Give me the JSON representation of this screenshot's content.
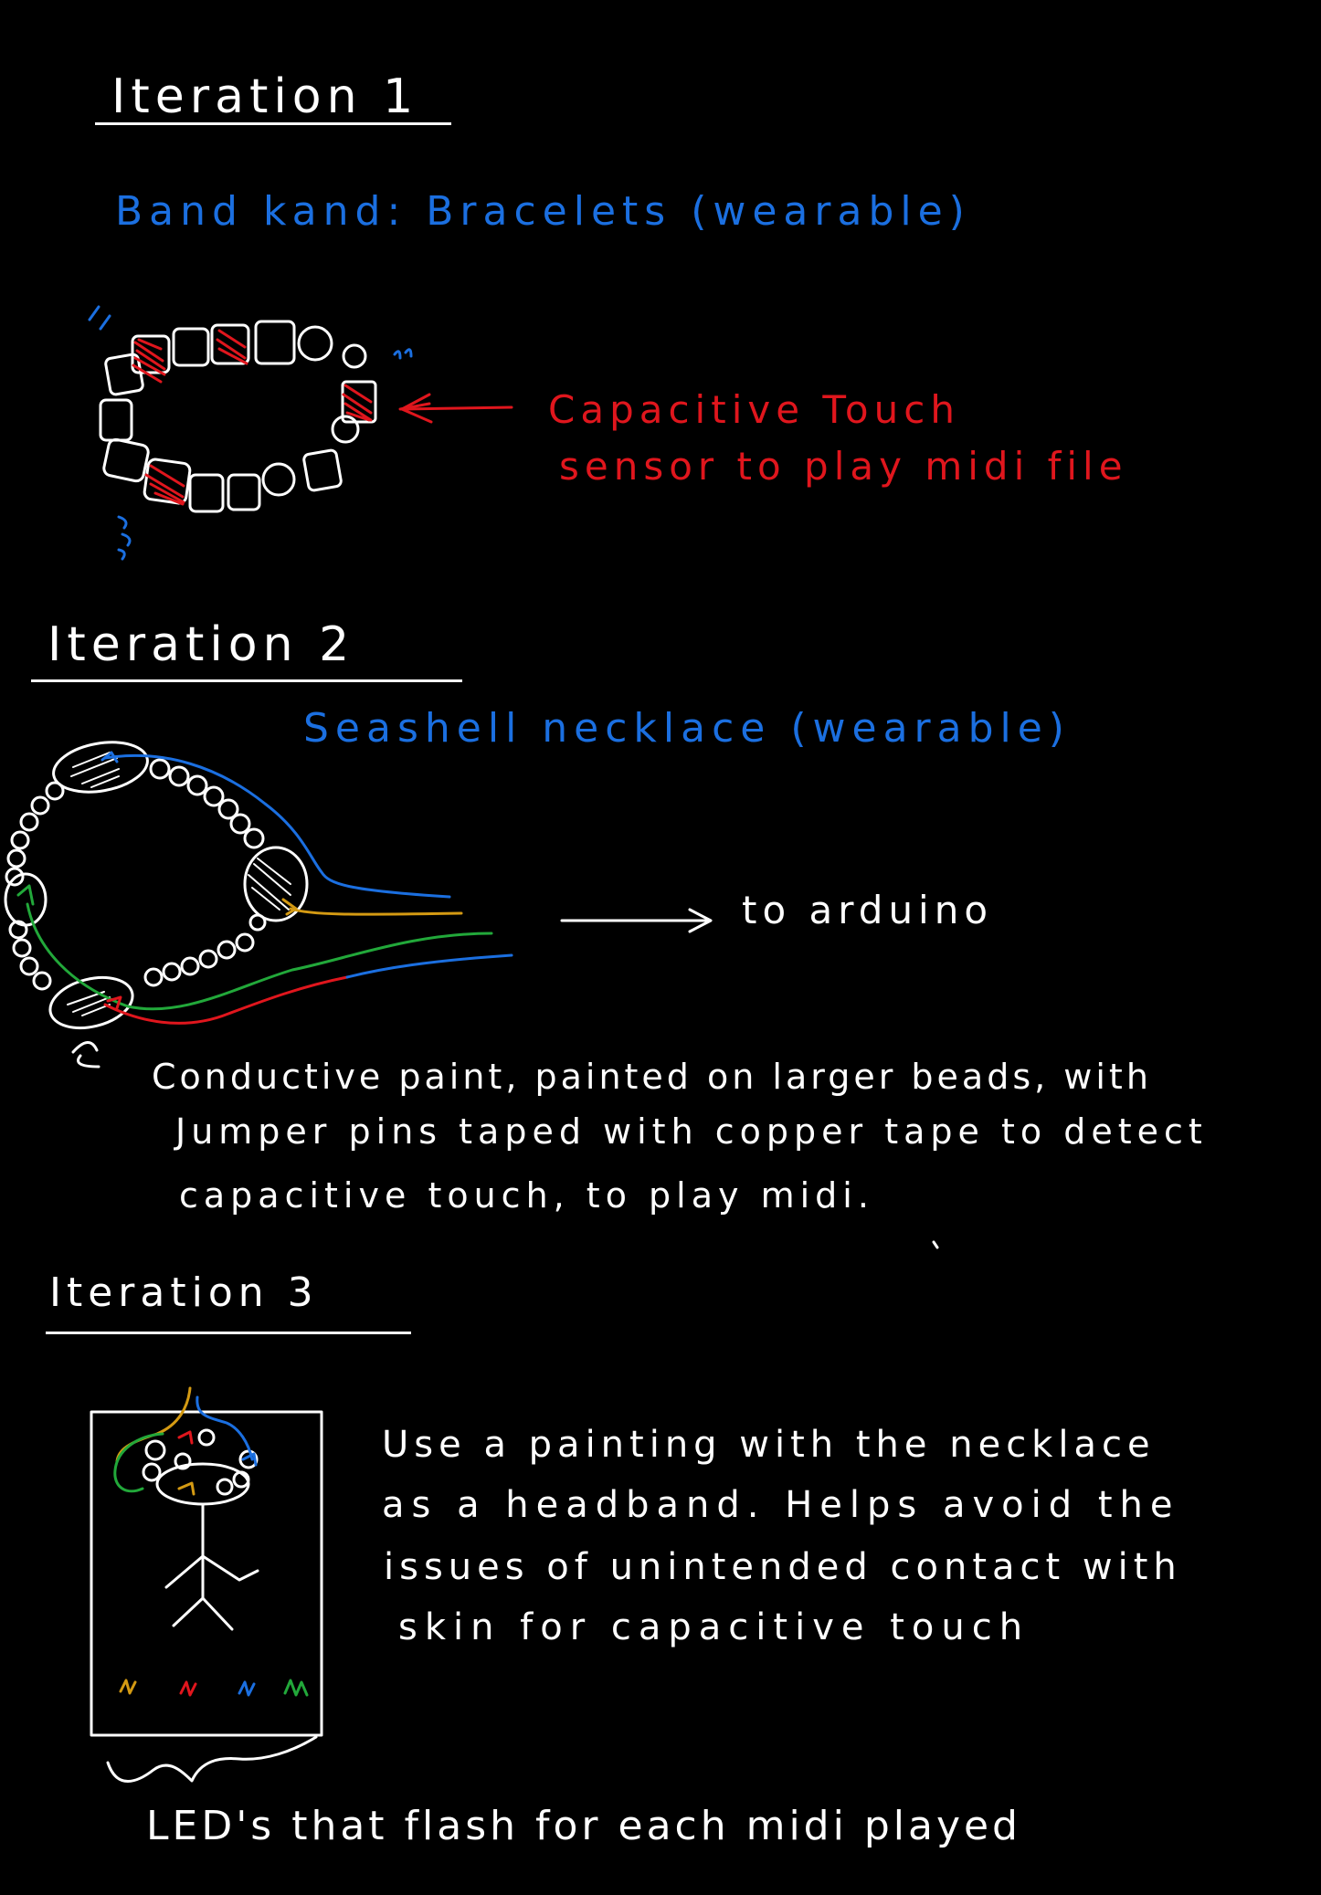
{
  "colors": {
    "background": "#000000",
    "ink": "#ffffff",
    "blue": "#1b6fe0",
    "red": "#e0161d",
    "green": "#22a83a",
    "gold": "#d49a13"
  },
  "iteration1": {
    "heading": "Iteration 1",
    "subtitle": "Band kand: Bracelets (wearable)",
    "annotation_line1": "Capacitive Touch",
    "annotation_line2": "sensor to play midi file"
  },
  "iteration2": {
    "heading": "Iteration 2",
    "subtitle": "Seashell necklace (wearable)",
    "arrow_label": "to arduino",
    "note_line1": "Conductive paint, painted on larger beads, with",
    "note_line2": "Jumper pins taped with copper tape to detect",
    "note_line3": "capacitive touch, to play midi."
  },
  "iteration3": {
    "heading": "Iteration 3",
    "desc_line1": "Use a painting with the necklace",
    "desc_line2": "as a headband. Helps avoid the",
    "desc_line3": "issues of unintended contact with",
    "desc_line4": "skin for capacitive touch",
    "led_caption": "LED's that flash for each midi played"
  }
}
